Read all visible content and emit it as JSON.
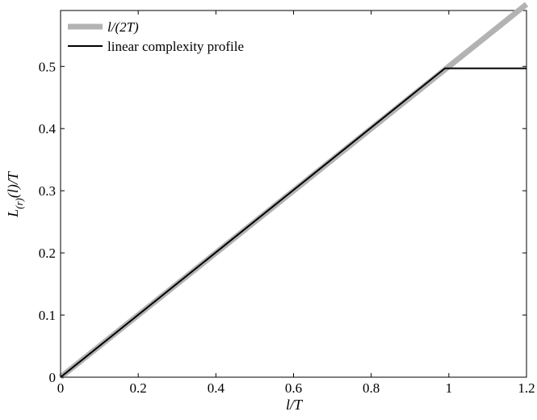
{
  "chart_data": {
    "type": "line",
    "title": "",
    "xlabel": "l/T",
    "ylabel": "L(r)(l)/T",
    "xlim": [
      0,
      1.2
    ],
    "ylim": [
      0,
      0.59
    ],
    "x_ticks": [
      0,
      0.2,
      0.4,
      0.6,
      0.8,
      1,
      1.2
    ],
    "x_tick_labels": [
      "0",
      "0.2",
      "0.4",
      "0.6",
      "0.8",
      "1",
      "1.2"
    ],
    "y_ticks": [
      0,
      0.1,
      0.2,
      0.3,
      0.4,
      0.5
    ],
    "y_tick_labels": [
      "0",
      "0.1",
      "0.2",
      "0.3",
      "0.4",
      "0.5"
    ],
    "grid": false,
    "legend_position": "top-left",
    "series": [
      {
        "name": "l/(2T)",
        "color": "#b3b3b3",
        "x": [
          0,
          1.2
        ],
        "y": [
          0,
          0.6
        ]
      },
      {
        "name": "linear complexity profile",
        "color": "#000000",
        "x": [
          0,
          0.99,
          1.2
        ],
        "y": [
          0,
          0.497,
          0.497
        ]
      }
    ]
  }
}
